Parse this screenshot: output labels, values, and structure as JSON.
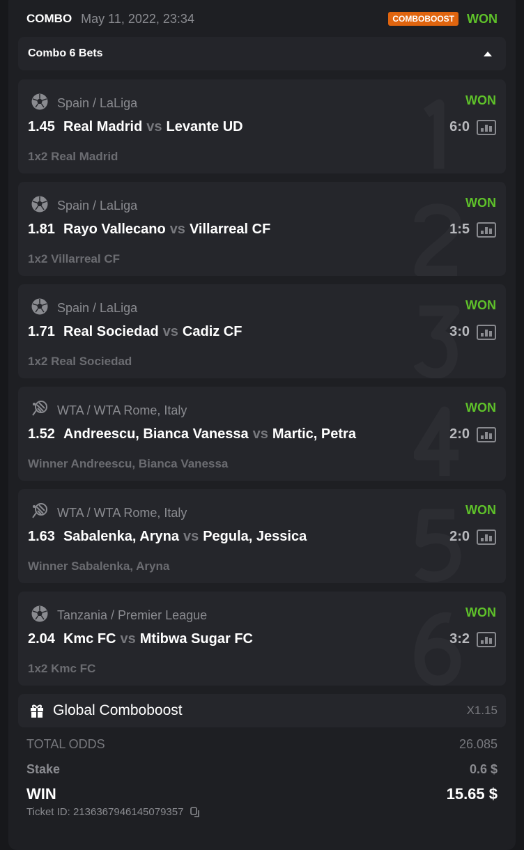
{
  "header": {
    "type": "COMBO",
    "date": "May 11, 2022, 23:34",
    "badge": "COMBOBOOST",
    "status": "WON"
  },
  "collapse": {
    "title": "Combo 6 Bets"
  },
  "bets": [
    {
      "index": "1",
      "sport": "soccer-ball-icon",
      "league": "Spain / LaLiga",
      "status": "WON",
      "odds": "1.45",
      "home": "Real Madrid",
      "vs": "vs",
      "away": "Levante UD",
      "score": "6:0",
      "pick": "1x2 Real Madrid"
    },
    {
      "index": "2",
      "sport": "soccer-ball-icon",
      "league": "Spain / LaLiga",
      "status": "WON",
      "odds": "1.81",
      "home": "Rayo Vallecano",
      "vs": "vs",
      "away": "Villarreal CF",
      "score": "1:5",
      "pick": "1x2 Villarreal CF"
    },
    {
      "index": "3",
      "sport": "soccer-ball-icon",
      "league": "Spain / LaLiga",
      "status": "WON",
      "odds": "1.71",
      "home": "Real Sociedad",
      "vs": "vs",
      "away": "Cadiz CF",
      "score": "3:0",
      "pick": "1x2 Real Sociedad"
    },
    {
      "index": "4",
      "sport": "tennis-icon",
      "league": "WTA / WTA Rome, Italy",
      "status": "WON",
      "odds": "1.52",
      "home": "Andreescu, Bianca Vanessa",
      "vs": "vs",
      "away": "Martic, Petra",
      "score": "2:0",
      "pick": "Winner Andreescu, Bianca Vanessa"
    },
    {
      "index": "5",
      "sport": "tennis-icon",
      "league": "WTA / WTA Rome, Italy",
      "status": "WON",
      "odds": "1.63",
      "home": "Sabalenka, Aryna",
      "vs": "vs",
      "away": "Pegula, Jessica",
      "score": "2:0",
      "pick": "Winner Sabalenka, Aryna"
    },
    {
      "index": "6",
      "sport": "soccer-ball-icon",
      "league": "Tanzania / Premier League",
      "status": "WON",
      "odds": "2.04",
      "home": "Kmc FC",
      "vs": "vs",
      "away": "Mtibwa Sugar FC",
      "score": "3:2",
      "pick": "1x2 Kmc FC"
    }
  ],
  "boost": {
    "label": "Global Comboboost",
    "value": "X1.15"
  },
  "summary": {
    "total_odds_label": "TOTAL ODDS",
    "total_odds": "26.085",
    "stake_label": "Stake",
    "stake": "0.6 $",
    "win_label": "WIN",
    "win": "15.65 $",
    "ticket": "Ticket ID: 2136367946145079357"
  },
  "colors": {
    "won": "#5fc22a",
    "badge": "#e0650f"
  }
}
